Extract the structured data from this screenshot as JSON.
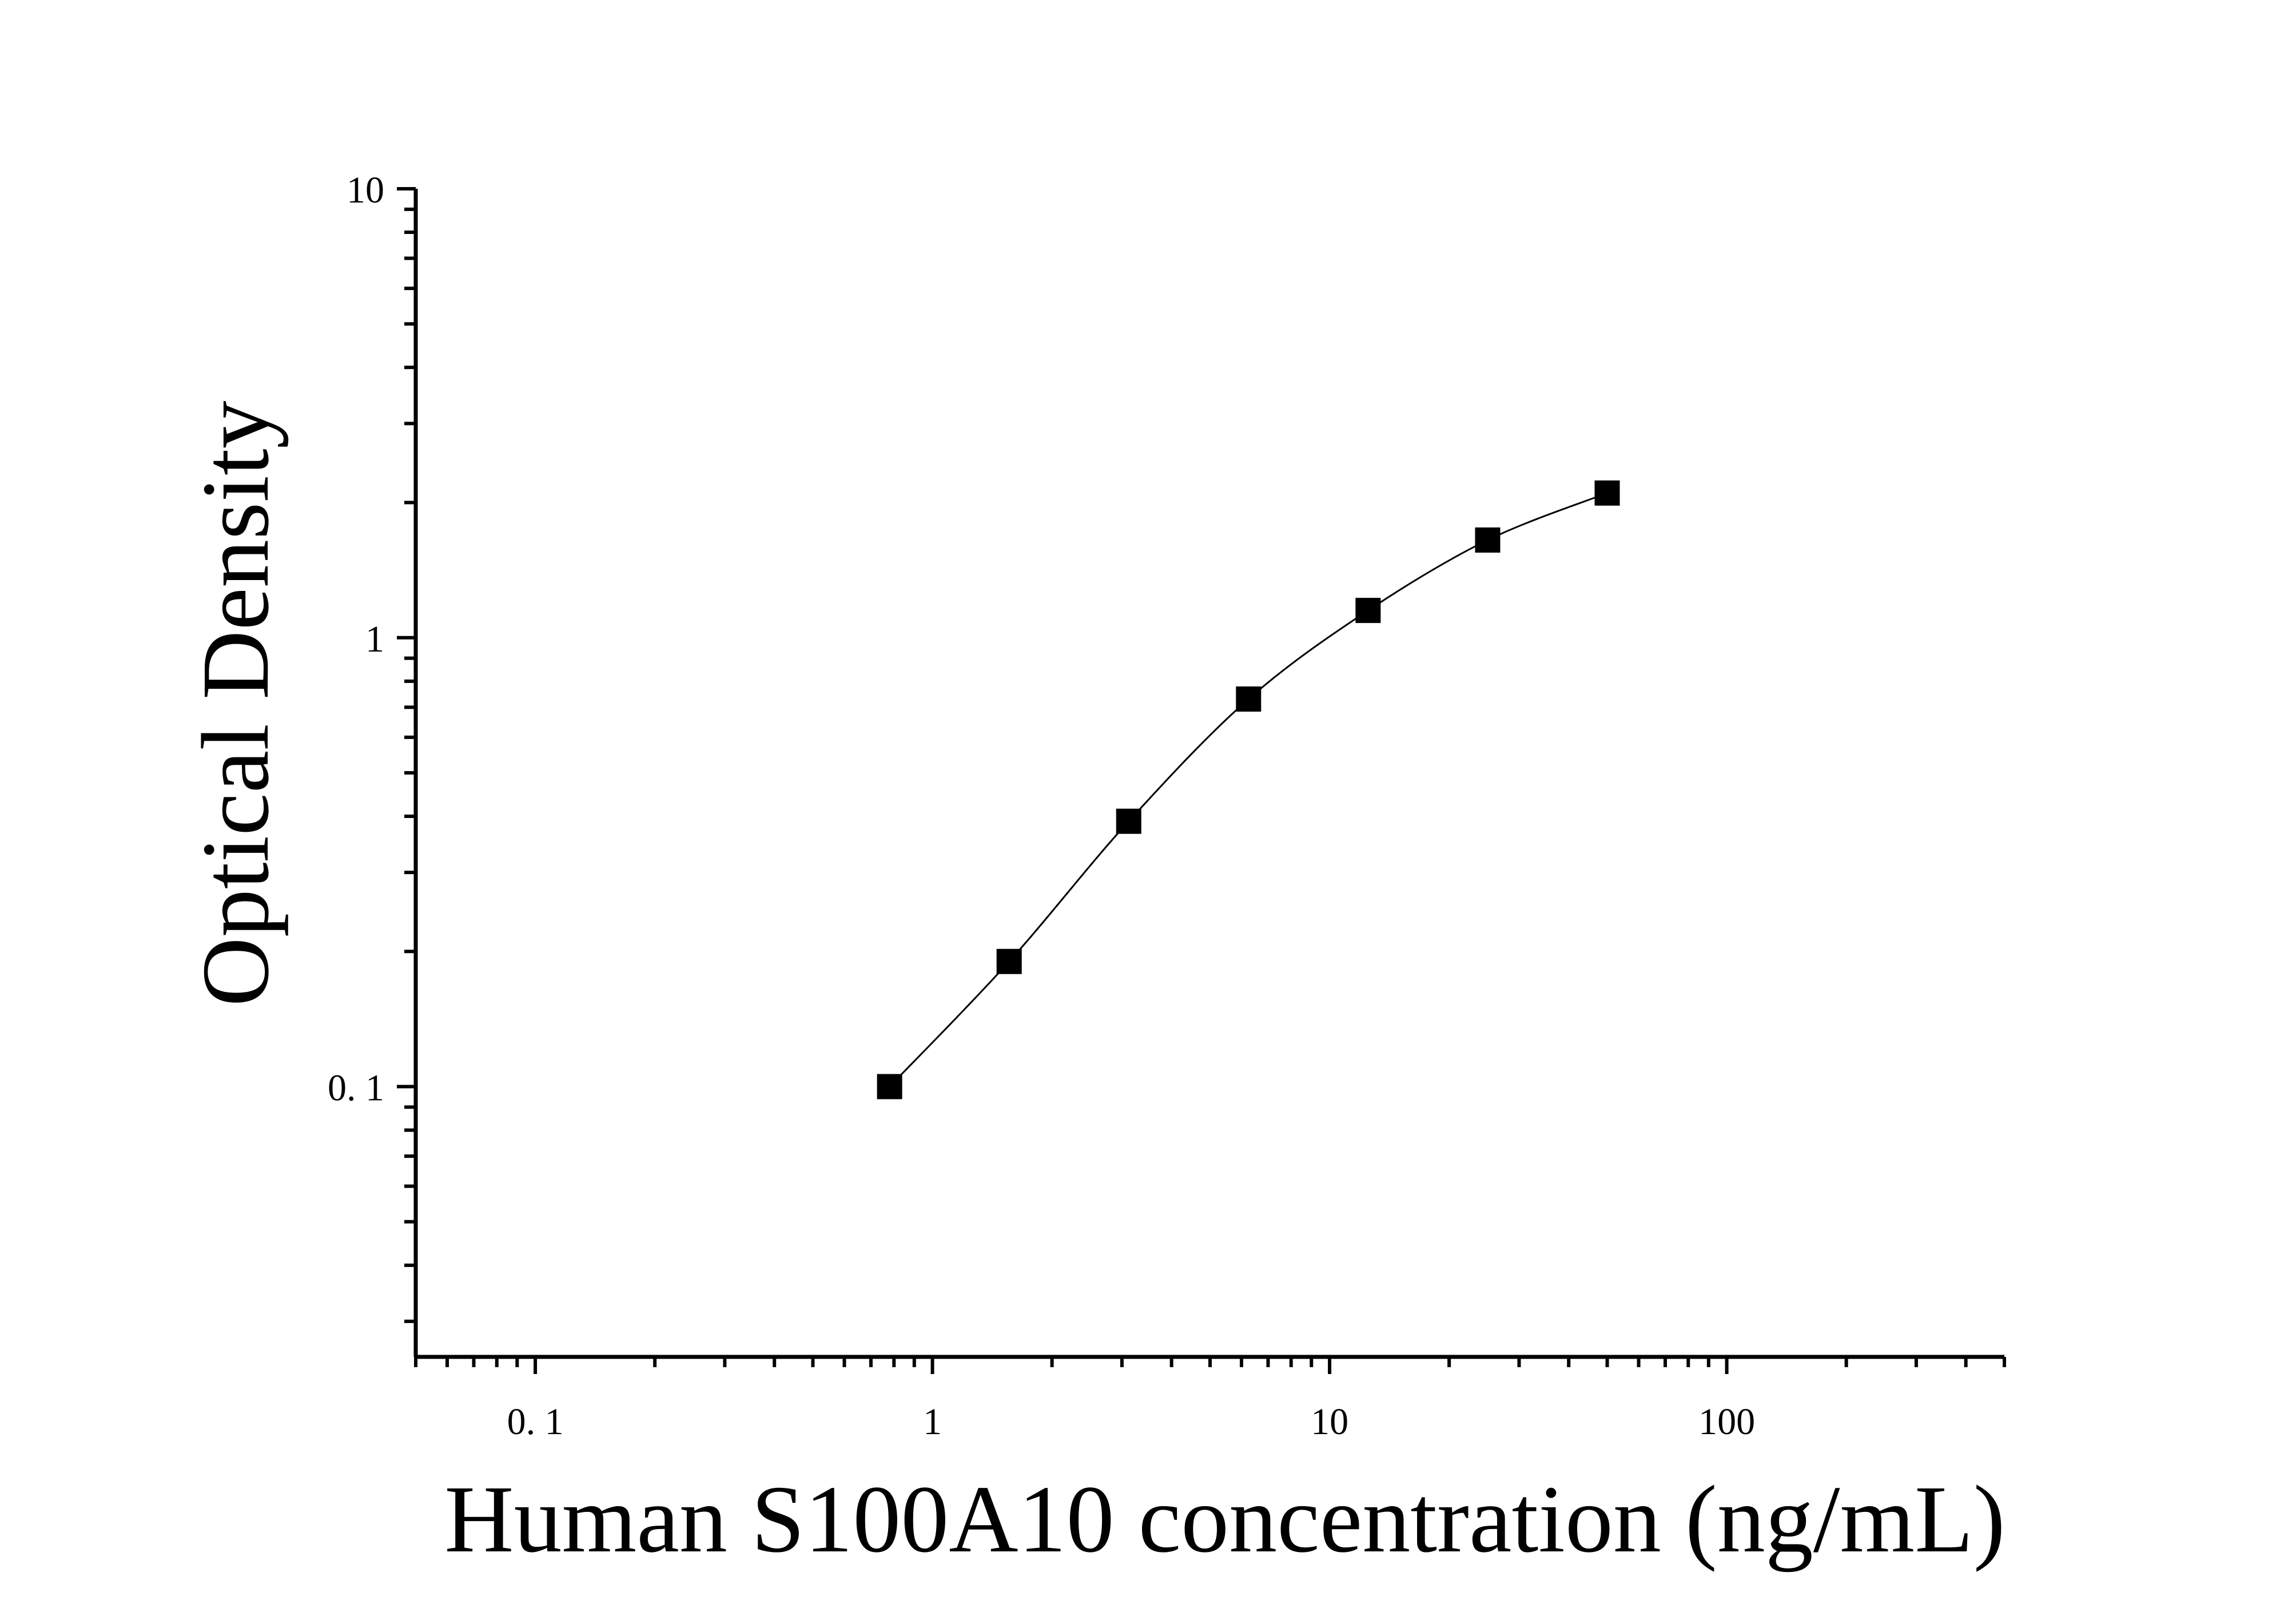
{
  "chart_data": {
    "type": "scatter",
    "title": "",
    "xlabel": "Human S100A10 concentration (ng/mL)",
    "ylabel": "Optical Density",
    "x_scale": "log",
    "y_scale": "log",
    "xlim": [
      0.05,
      500
    ],
    "ylim": [
      0.025,
      10
    ],
    "x_ticks": [
      {
        "value": 0.1,
        "label": "0. 1"
      },
      {
        "value": 1,
        "label": "1"
      },
      {
        "value": 10,
        "label": "10"
      },
      {
        "value": 100,
        "label": "100"
      }
    ],
    "y_ticks": [
      {
        "value": 10,
        "label": "10"
      },
      {
        "value": 1,
        "label": "1"
      },
      {
        "value": 0.1,
        "label": "0. 1"
      }
    ],
    "grid": false,
    "legend": "none",
    "series": [
      {
        "marker": "square",
        "color": "#000000",
        "x": [
          0.78,
          1.56,
          3.12,
          6.25,
          12.5,
          25,
          50
        ],
        "y": [
          0.1,
          0.19,
          0.39,
          0.73,
          1.15,
          1.65,
          2.1
        ]
      }
    ],
    "fit_curve": true
  }
}
